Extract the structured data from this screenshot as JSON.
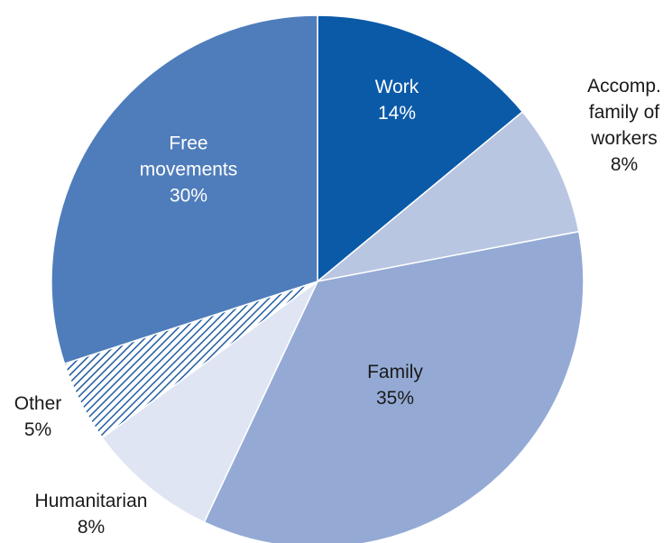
{
  "chart_data": {
    "type": "pie",
    "unit": "%",
    "slices": [
      {
        "label": "Work",
        "label_lines": [
          "Work"
        ],
        "value": 14,
        "value_text": "14%",
        "color": "#0b5aa8",
        "text_color": "#ffffff",
        "label_inside": true
      },
      {
        "label": "Accomp. family of workers",
        "label_lines": [
          "Accomp.",
          "family of",
          "workers"
        ],
        "value": 8,
        "value_text": "8%",
        "color": "#b8c6e2",
        "text_color": "#1a1a1a",
        "label_inside": false
      },
      {
        "label": "Family",
        "label_lines": [
          "Family"
        ],
        "value": 35,
        "value_text": "35%",
        "color": "#94aad5",
        "text_color": "#1a1a1a",
        "label_inside": true
      },
      {
        "label": "Humanitarian",
        "label_lines": [
          "Humanitarian"
        ],
        "value": 8,
        "value_text": "8%",
        "color": "#dfe5f2",
        "text_color": "#1a1a1a",
        "label_inside": false
      },
      {
        "label": "Other",
        "label_lines": [
          "Other"
        ],
        "value": 5,
        "value_text": "5%",
        "color": "hatched #1f5ca0",
        "text_color": "#1a1a1a",
        "label_inside": false
      },
      {
        "label": "Free movements",
        "label_lines": [
          "Free",
          "movements"
        ],
        "value": 30,
        "value_text": "30%",
        "color": "#4f7dbb",
        "text_color": "#ffffff",
        "label_inside": true
      }
    ]
  }
}
